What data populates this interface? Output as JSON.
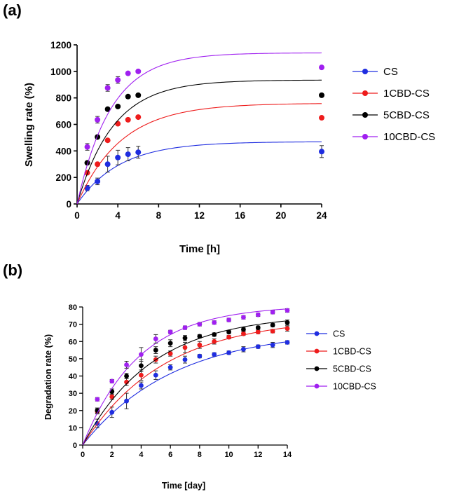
{
  "chart_data": [
    {
      "type": "scatter",
      "panel_label": "(a)",
      "title": "",
      "xlabel": "Time [h]",
      "ylabel": "Swelling rate (%)",
      "xlim": [
        0,
        24
      ],
      "ylim": [
        0,
        1200
      ],
      "xticks": [
        "0",
        "4",
        "8",
        "12",
        "16",
        "20",
        "24"
      ],
      "yticks": [
        "0",
        "200",
        "400",
        "600",
        "800",
        "1000",
        "1200"
      ],
      "legend_position": "right",
      "x": [
        1,
        2,
        3,
        4,
        5,
        6,
        24
      ],
      "series": [
        {
          "name": "CS",
          "color": "#1f2de0",
          "values": [
            120,
            170,
            300,
            350,
            375,
            390,
            395
          ],
          "errors": [
            20,
            25,
            60,
            55,
            50,
            45,
            45
          ],
          "fit": {
            "ymax": 470,
            "k": 0.24
          }
        },
        {
          "name": "1CBD-CS",
          "color": "#ee1c1c",
          "values": [
            235,
            300,
            480,
            605,
            635,
            655,
            650
          ],
          "errors": [
            0,
            0,
            0,
            0,
            0,
            0,
            0
          ],
          "fit": {
            "ymax": 760,
            "k": 0.23
          }
        },
        {
          "name": "5CBD-CS",
          "color": "#000000",
          "values": [
            310,
            505,
            715,
            735,
            810,
            820,
            820
          ],
          "errors": [
            0,
            0,
            0,
            0,
            0,
            0,
            0
          ],
          "fit": {
            "ymax": 935,
            "k": 0.28
          }
        },
        {
          "name": "10CBD-CS",
          "color": "#a020f0",
          "values": [
            430,
            635,
            875,
            935,
            985,
            1000,
            1030
          ],
          "errors": [
            25,
            25,
            25,
            25,
            0,
            0,
            0
          ],
          "fit": {
            "ymax": 1140,
            "k": 0.3
          }
        }
      ]
    },
    {
      "type": "scatter",
      "panel_label": "(b)",
      "title": "",
      "xlabel": "Time [day]",
      "ylabel": "Degradation rate (%)",
      "xlim": [
        0,
        14
      ],
      "ylim": [
        0,
        80
      ],
      "xticks": [
        "0",
        "2",
        "4",
        "6",
        "8",
        "10",
        "12",
        "14"
      ],
      "yticks": [
        "0",
        "10",
        "20",
        "30",
        "40",
        "50",
        "60",
        "70",
        "80"
      ],
      "legend_position": "right",
      "x": [
        1,
        2,
        3,
        4,
        5,
        6,
        7,
        8,
        9,
        10,
        11,
        12,
        13,
        14
      ],
      "series": [
        {
          "name": "CS",
          "color": "#1f2de0",
          "values": [
            12.5,
            19,
            25.5,
            34.5,
            40.5,
            45,
            49.5,
            51.5,
            52.5,
            53.5,
            55.5,
            57,
            58,
            59.5
          ],
          "errors": [
            2.5,
            3,
            4.5,
            2,
            2.5,
            1.5,
            2,
            1,
            1,
            1,
            1.5,
            1,
            1.5,
            1
          ],
          "fit": {
            "ymax": 67,
            "k": 0.16
          }
        },
        {
          "name": "1CBD-CS",
          "color": "#ee1c1c",
          "values": [
            19.5,
            28,
            36.5,
            40.5,
            49.5,
            53,
            56.5,
            58,
            60,
            62.5,
            64.5,
            65.5,
            66,
            67.5
          ],
          "errors": [
            1.5,
            1.5,
            2,
            3,
            2,
            1.5,
            3,
            2,
            1.5,
            1,
            1,
            1,
            1,
            1.5
          ],
          "fit": {
            "ymax": 74,
            "k": 0.18
          }
        },
        {
          "name": "5CBD-CS",
          "color": "#000000",
          "values": [
            20,
            31,
            40,
            46,
            55,
            59,
            62,
            63,
            64,
            65.5,
            67,
            68,
            69.5,
            71
          ],
          "errors": [
            1.5,
            1.5,
            1.5,
            3.5,
            2,
            2,
            1.5,
            1,
            1,
            1,
            1,
            1,
            1,
            1.5
          ],
          "fit": {
            "ymax": 76,
            "k": 0.21
          }
        },
        {
          "name": "10CBD-CS",
          "color": "#a020f0",
          "values": [
            26.5,
            37,
            46.5,
            52.5,
            61.5,
            65.5,
            68,
            70,
            71,
            72.5,
            74,
            75.5,
            77,
            78
          ],
          "errors": [
            1,
            1,
            2,
            4,
            2.5,
            1,
            1,
            1,
            1,
            1,
            1,
            1,
            1,
            1
          ],
          "fit": {
            "ymax": 81,
            "k": 0.26
          }
        }
      ]
    }
  ]
}
